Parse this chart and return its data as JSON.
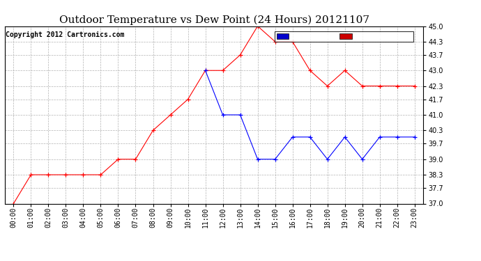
{
  "title": "Outdoor Temperature vs Dew Point (24 Hours) 20121107",
  "copyright": "Copyright 2012 Cartronics.com",
  "ylim": [
    37.0,
    45.0
  ],
  "yticks": [
    37.0,
    37.7,
    38.3,
    39.0,
    39.7,
    40.3,
    41.0,
    41.7,
    42.3,
    43.0,
    43.7,
    44.3,
    45.0
  ],
  "hours": [
    "00:00",
    "01:00",
    "02:00",
    "03:00",
    "04:00",
    "05:00",
    "06:00",
    "07:00",
    "08:00",
    "09:00",
    "10:00",
    "11:00",
    "12:00",
    "13:00",
    "14:00",
    "15:00",
    "16:00",
    "17:00",
    "18:00",
    "19:00",
    "20:00",
    "21:00",
    "22:00",
    "23:00"
  ],
  "temperature": [
    37.0,
    38.3,
    38.3,
    38.3,
    38.3,
    38.3,
    39.0,
    39.0,
    40.3,
    41.0,
    41.7,
    43.0,
    43.0,
    43.7,
    45.0,
    44.3,
    44.3,
    43.0,
    42.3,
    43.0,
    42.3,
    42.3,
    42.3,
    42.3
  ],
  "dewpoint": [
    null,
    null,
    null,
    null,
    null,
    null,
    null,
    null,
    null,
    null,
    null,
    43.0,
    41.0,
    41.0,
    39.0,
    39.0,
    40.0,
    40.0,
    39.0,
    40.0,
    39.0,
    40.0,
    40.0,
    40.0
  ],
  "temp_color": "#ff0000",
  "dew_color": "#0000ff",
  "bg_color": "#ffffff",
  "plot_bg_color": "#ffffff",
  "grid_color": "#aaaaaa",
  "legend_dew_bg": "#0000cc",
  "legend_temp_bg": "#cc0000",
  "title_fontsize": 11,
  "copyright_fontsize": 7,
  "axis_fontsize": 7,
  "legend_fontsize": 7
}
